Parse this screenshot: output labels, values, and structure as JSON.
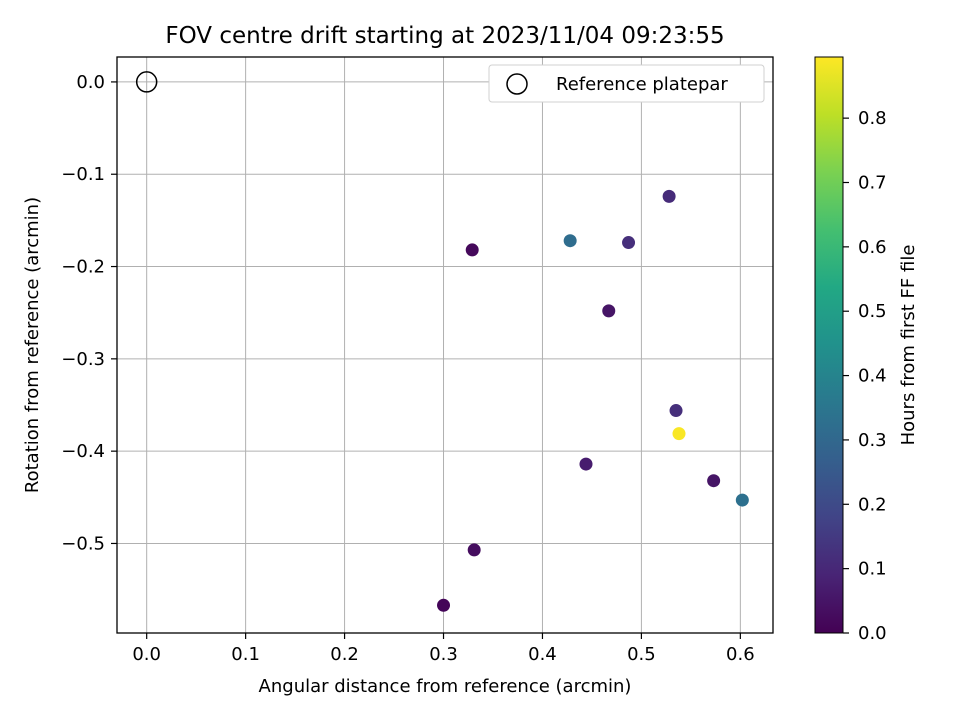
{
  "chart_data": {
    "type": "scatter",
    "title": "FOV centre drift starting at 2023/11/04 09:23:55",
    "xlabel": "Angular distance from reference (arcmin)",
    "ylabel": "Rotation from reference (arcmin)",
    "xlim": [
      -0.03,
      0.633
    ],
    "ylim": [
      -0.597,
      0.027
    ],
    "x_ticks": [
      "0.0",
      "0.1",
      "0.2",
      "0.3",
      "0.4",
      "0.5",
      "0.6"
    ],
    "x_tick_values": [
      0.0,
      0.1,
      0.2,
      0.3,
      0.4,
      0.5,
      0.6
    ],
    "y_ticks": [
      "0.0",
      "−0.1",
      "−0.2",
      "−0.3",
      "−0.4",
      "−0.5"
    ],
    "y_tick_values": [
      0.0,
      -0.1,
      -0.2,
      -0.3,
      -0.4,
      -0.5
    ],
    "grid": true,
    "legend": {
      "position": "top-right",
      "entries": [
        {
          "label": "Reference platepar",
          "marker": "open-circle"
        }
      ]
    },
    "reference_point": {
      "x": 0.0,
      "y": 0.0
    },
    "points": [
      {
        "x": 0.329,
        "y": -0.182,
        "hours": 0.02
      },
      {
        "x": 0.428,
        "y": -0.172,
        "hours": 0.32
      },
      {
        "x": 0.487,
        "y": -0.174,
        "hours": 0.12
      },
      {
        "x": 0.528,
        "y": -0.124,
        "hours": 0.11
      },
      {
        "x": 0.467,
        "y": -0.248,
        "hours": 0.05
      },
      {
        "x": 0.535,
        "y": -0.356,
        "hours": 0.12
      },
      {
        "x": 0.538,
        "y": -0.381,
        "hours": 0.89
      },
      {
        "x": 0.444,
        "y": -0.414,
        "hours": 0.07
      },
      {
        "x": 0.573,
        "y": -0.432,
        "hours": 0.05
      },
      {
        "x": 0.602,
        "y": -0.453,
        "hours": 0.33
      },
      {
        "x": 0.331,
        "y": -0.507,
        "hours": 0.03
      },
      {
        "x": 0.3,
        "y": -0.567,
        "hours": 0.01
      }
    ],
    "colorbar": {
      "label": "Hours from first FF file",
      "colormap": "viridis",
      "range": [
        0.0,
        0.895
      ],
      "ticks": [
        "0.0",
        "0.1",
        "0.2",
        "0.3",
        "0.4",
        "0.5",
        "0.6",
        "0.7",
        "0.8"
      ],
      "tick_values": [
        0.0,
        0.1,
        0.2,
        0.3,
        0.4,
        0.5,
        0.6,
        0.7,
        0.8
      ]
    }
  }
}
